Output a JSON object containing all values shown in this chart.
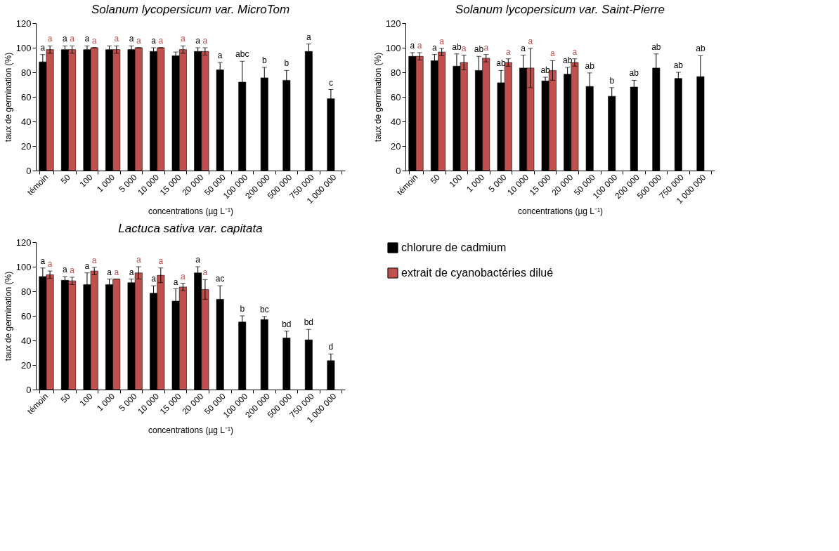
{
  "chart_data": [
    {
      "type": "bar",
      "title": "Solanum lycopersicum var. MicroTom",
      "xlabel": "concentrations (µg L⁻¹)",
      "ylabel": "taux de germination (%)",
      "categories": [
        "témoin",
        "50",
        "100",
        "1 000",
        "5 000",
        "10 000",
        "15 000",
        "20 000",
        "50 000",
        "100 000",
        "200 000",
        "500 000",
        "750 000",
        "1 000 000"
      ],
      "ylim": [
        0,
        120
      ],
      "yticks": [
        0,
        20,
        40,
        60,
        80,
        100,
        120
      ],
      "grid": false,
      "series": [
        {
          "color": "#000000",
          "values": [
            88.5,
            98.5,
            98.5,
            98.5,
            98.5,
            97,
            93.5,
            97,
            82,
            72,
            75.5,
            73.5,
            97,
            58.5
          ],
          "errors": [
            6,
            3,
            3,
            3,
            3,
            3,
            3,
            3,
            6,
            17,
            8.5,
            8,
            6,
            7.5
          ],
          "value_labels": [
            "a",
            "a",
            "a",
            null,
            "a",
            "a",
            null,
            "a",
            "a",
            "abc",
            "b",
            "b",
            "a",
            "c"
          ]
        },
        {
          "color": "#c0504d",
          "values": [
            98.5,
            98.5,
            100,
            98.5,
            100,
            100,
            98.5,
            97,
            null,
            null,
            null,
            null,
            null,
            null
          ],
          "errors": [
            3,
            3,
            0,
            3,
            0,
            0,
            3,
            3,
            null,
            null,
            null,
            null,
            null,
            null
          ],
          "value_labels": [
            "a",
            "a",
            "a",
            "a",
            "a",
            "a",
            "a",
            "a",
            null,
            null,
            null,
            null,
            null,
            null
          ]
        }
      ]
    },
    {
      "type": "bar",
      "title": "Solanum lycopersicum var. Saint-Pierre",
      "xlabel": "concentrations (µg L⁻¹)",
      "ylabel": "taux de germination (%)",
      "categories": [
        "témoin",
        "50",
        "100",
        "1 000",
        "5 000",
        "10 000",
        "15 000",
        "20 000",
        "50 000",
        "100 000",
        "200 000",
        "500 000",
        "750 000",
        "1 000 000"
      ],
      "ylim": [
        0,
        120
      ],
      "yticks": [
        0,
        20,
        40,
        60,
        80,
        100,
        120
      ],
      "grid": false,
      "series": [
        {
          "color": "#000000",
          "values": [
            93,
            89.5,
            85,
            81.5,
            71.5,
            83.5,
            73,
            78.5,
            68.5,
            60.5,
            68,
            83.5,
            75,
            76.5
          ],
          "errors": [
            3,
            5,
            10,
            11.5,
            10,
            10.5,
            3,
            5.5,
            11,
            7,
            5.5,
            11.5,
            5,
            17
          ],
          "value_labels": [
            "a",
            "a",
            "ab",
            "ab",
            "ab",
            "a",
            "ab",
            "ab",
            "ab",
            "b",
            "ab",
            "ab",
            "ab",
            "ab"
          ]
        },
        {
          "color": "#c0504d",
          "values": [
            93,
            96.5,
            88,
            91.5,
            88,
            83.5,
            81.5,
            88,
            null,
            null,
            null,
            null,
            null,
            null
          ],
          "errors": [
            3,
            3,
            6,
            3,
            3,
            16,
            8,
            3,
            null,
            null,
            null,
            null,
            null,
            null
          ],
          "value_labels": [
            "a",
            "a",
            "a",
            "a",
            "a",
            "a",
            "a",
            "a",
            null,
            null,
            null,
            null,
            null,
            null
          ]
        }
      ]
    },
    {
      "type": "bar",
      "title": "Lactuca sativa var. capitata",
      "xlabel": "concentrations (µg L⁻¹)",
      "ylabel": "taux de germination (%)",
      "categories": [
        "témoin",
        "50",
        "100",
        "1 000",
        "5 000",
        "10 000",
        "15 000",
        "20 000",
        "50 000",
        "100 000",
        "200 000",
        "500 000",
        "750 000",
        "1 000 000"
      ],
      "ylim": [
        0,
        120
      ],
      "yticks": [
        0,
        20,
        40,
        60,
        80,
        100,
        120
      ],
      "grid": false,
      "legend": "right",
      "series": [
        {
          "name": "chlorure de cadmium",
          "color": "#000000",
          "values": [
            92,
            89,
            85.5,
            85.5,
            87,
            78.5,
            72,
            95,
            73.5,
            55,
            57,
            42,
            40.5,
            23.5
          ],
          "errors": [
            7,
            3,
            9.5,
            4.5,
            3,
            6,
            10,
            5,
            11,
            5,
            2.5,
            5.5,
            8.5,
            5.5
          ],
          "value_labels": [
            "a",
            "a",
            "a",
            "a",
            "a",
            "a",
            "a",
            "a",
            "ac",
            "b",
            "bc",
            "bd",
            "bd",
            "d"
          ]
        },
        {
          "name": "extrait de cyanobactéries dilué",
          "color": "#c0504d",
          "values": [
            93.5,
            88.5,
            96.5,
            90,
            95,
            93,
            83.5,
            81.5,
            null,
            null,
            null,
            null,
            null,
            null
          ],
          "errors": [
            3,
            3,
            3,
            0,
            5,
            6,
            3,
            8,
            null,
            null,
            null,
            null,
            null,
            null
          ],
          "value_labels": [
            "a",
            "a",
            "a",
            "a",
            "a",
            "a",
            "a",
            "a",
            null,
            null,
            null,
            null,
            null,
            null
          ]
        }
      ]
    }
  ]
}
